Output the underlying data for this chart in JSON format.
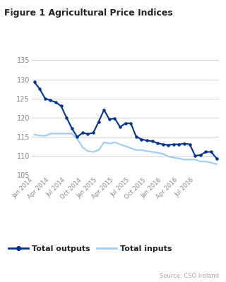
{
  "title": "Figure 1 Agricultural Price Indices",
  "source": "Source: CSO Ireland",
  "ylim": [
    105,
    136
  ],
  "yticks": [
    105,
    110,
    115,
    120,
    125,
    130,
    135
  ],
  "x_labels": [
    "Jan 2014",
    "Apr 2014",
    "Jul 2014",
    "Oct 2014",
    "Jan 2015",
    "Apr 2015",
    "Jul 2015",
    "Oct 2015",
    "Jan 2016",
    "Apr 2016",
    "Jul 2016"
  ],
  "total_outputs": [
    129.3,
    127.5,
    125.0,
    124.5,
    124.0,
    123.0,
    120.0,
    117.2,
    114.9,
    116.0,
    115.7,
    116.0,
    118.9,
    122.0,
    119.5,
    119.8,
    117.5,
    118.5,
    118.5,
    115.0,
    114.3,
    114.0,
    113.8,
    113.3,
    113.0,
    112.8,
    113.0,
    113.0,
    113.2,
    113.0,
    110.0,
    110.2,
    111.0,
    111.0,
    109.3
  ],
  "total_inputs": [
    115.5,
    115.3,
    115.2,
    115.8,
    115.8,
    115.8,
    115.8,
    115.8,
    114.5,
    112.2,
    111.2,
    111.0,
    111.5,
    113.5,
    113.2,
    113.5,
    113.0,
    112.5,
    112.0,
    111.5,
    111.5,
    111.2,
    111.0,
    110.8,
    110.5,
    109.8,
    109.5,
    109.3,
    109.0,
    109.0,
    109.0,
    108.5,
    108.5,
    108.2,
    107.8
  ],
  "outputs_color": "#003399",
  "inputs_color": "#99ccff",
  "legend_outputs": "Total outputs",
  "legend_inputs": "Total inputs",
  "n_points": 35,
  "x_tick_positions": [
    0,
    3,
    6,
    9,
    12,
    15,
    18,
    21,
    24,
    27,
    30
  ],
  "bg_color": "#ffffff",
  "grid_color": "#cccccc",
  "tick_label_color": "#888888",
  "title_color": "#222222",
  "source_color": "#aaaaaa",
  "legend_text_color": "#222222"
}
